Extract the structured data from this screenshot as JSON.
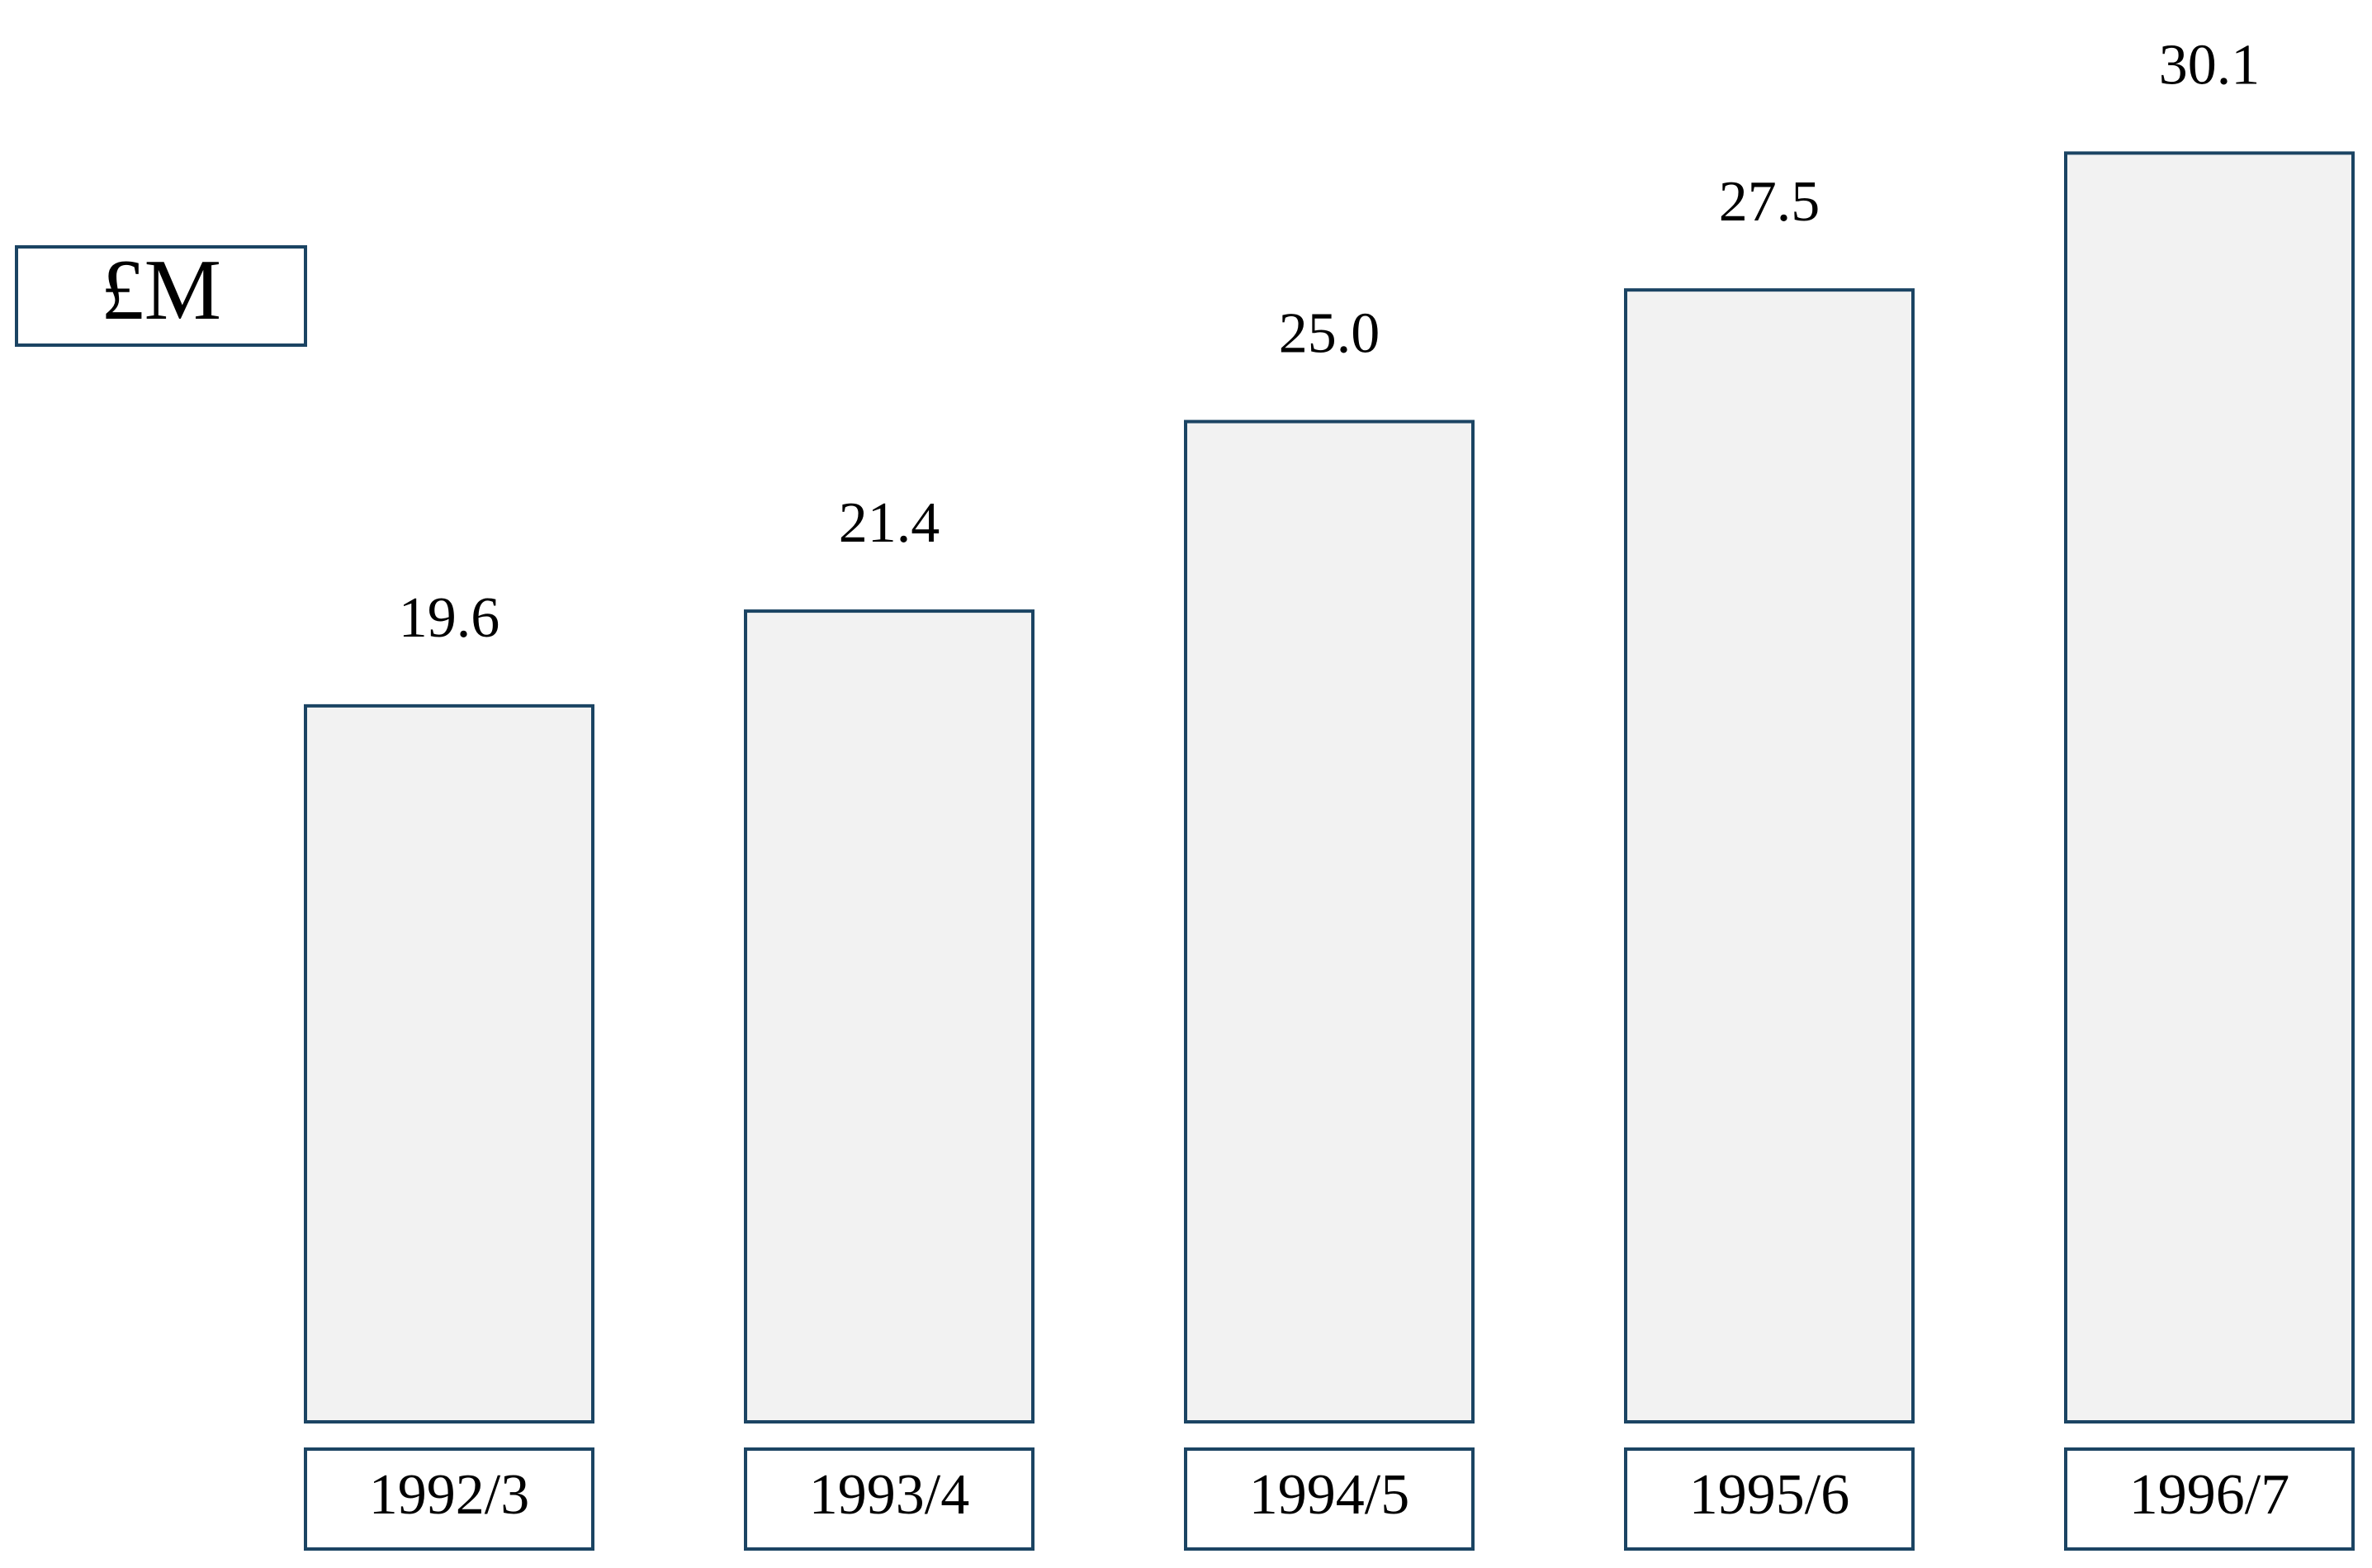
{
  "chart_data": {
    "type": "bar",
    "y_label": "£M",
    "categories": [
      "1992/3",
      "1993/4",
      "1994/5",
      "1995/6",
      "1996/7"
    ],
    "values": [
      19.6,
      21.4,
      25.0,
      27.5,
      30.1
    ],
    "value_labels": [
      "19.6",
      "21.4",
      "25.0",
      "27.5",
      "30.1"
    ],
    "color": "#f2f2f2",
    "edge_color": "#1b4463",
    "ylim": [
      6,
      31
    ]
  }
}
